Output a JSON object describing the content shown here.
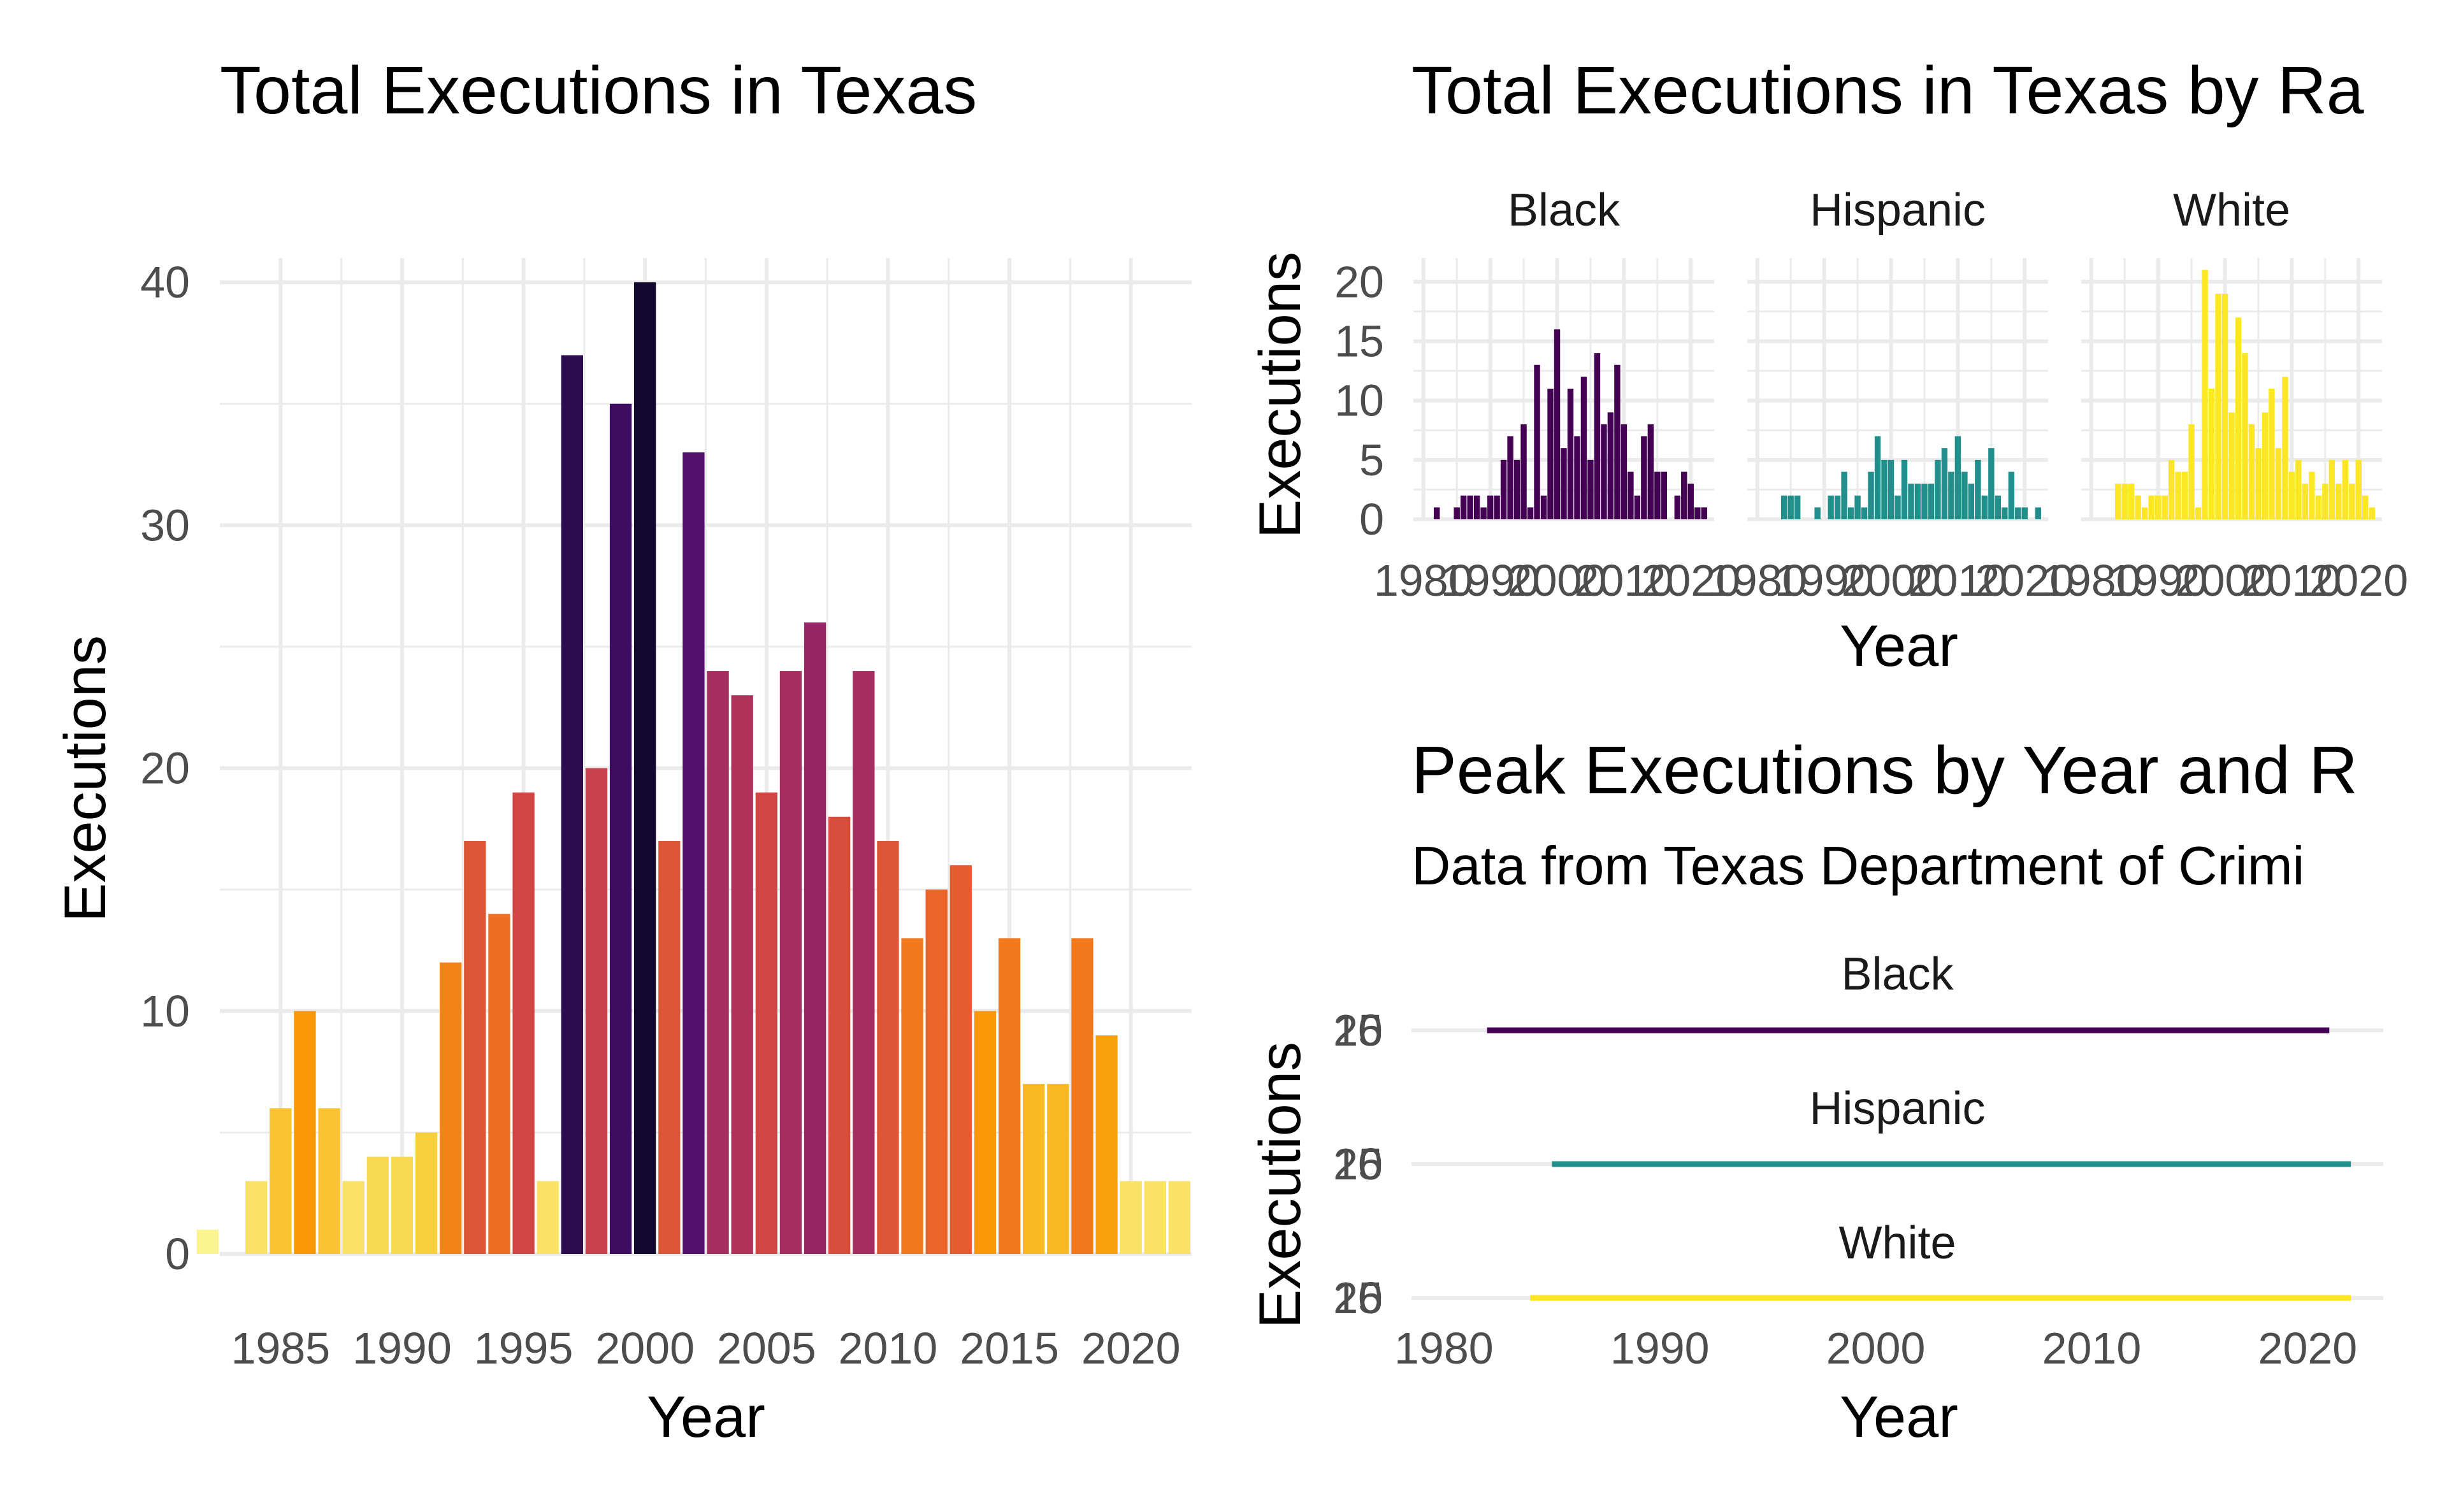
{
  "chart_data": [
    {
      "type": "bar",
      "title": "Total Executions in Texas",
      "xlabel": "Year",
      "ylabel": "Executions",
      "x_ticks": [
        1985,
        1990,
        1995,
        2000,
        2005,
        2010,
        2015,
        2020
      ],
      "y_ticks": [
        0,
        10,
        20,
        30,
        40
      ],
      "xlim": [
        1982.5,
        2022.5
      ],
      "ylim": [
        0,
        41
      ],
      "grid": true,
      "legend": "none",
      "fill_scale": "inferno (reversed): light yellow = few, black = many",
      "x": [
        1982,
        1983,
        1984,
        1985,
        1986,
        1987,
        1988,
        1989,
        1990,
        1991,
        1992,
        1993,
        1994,
        1995,
        1996,
        1997,
        1998,
        1999,
        2000,
        2001,
        2002,
        2003,
        2004,
        2005,
        2006,
        2007,
        2008,
        2009,
        2010,
        2011,
        2012,
        2013,
        2014,
        2015,
        2016,
        2017,
        2018,
        2019,
        2020,
        2021,
        2022
      ],
      "values": [
        1,
        0,
        3,
        6,
        10,
        6,
        3,
        4,
        4,
        5,
        12,
        17,
        14,
        19,
        3,
        37,
        20,
        35,
        40,
        17,
        33,
        24,
        23,
        19,
        24,
        26,
        18,
        24,
        17,
        13,
        15,
        16,
        10,
        13,
        7,
        7,
        13,
        9,
        3,
        3,
        3
      ]
    },
    {
      "type": "bar",
      "title": "Total Executions in Texas by Ra",
      "xlabel": "Year",
      "ylabel": "Executions",
      "facets": [
        "Black",
        "Hispanic",
        "White"
      ],
      "x_ticks": [
        1980,
        1990,
        2000,
        2010,
        2020
      ],
      "x_tick_labels": [
        "1980",
        "1990",
        "2000",
        "2010",
        "2020"
      ],
      "y_ticks": [
        0,
        5,
        10,
        15,
        20
      ],
      "xlim": [
        1978.5,
        2023.5
      ],
      "ylim": [
        0,
        22
      ],
      "grid": true,
      "x": [
        1982,
        1983,
        1984,
        1985,
        1986,
        1987,
        1988,
        1989,
        1990,
        1991,
        1992,
        1993,
        1994,
        1995,
        1996,
        1997,
        1998,
        1999,
        2000,
        2001,
        2002,
        2003,
        2004,
        2005,
        2006,
        2007,
        2008,
        2009,
        2010,
        2011,
        2012,
        2013,
        2014,
        2015,
        2016,
        2017,
        2018,
        2019,
        2020,
        2021,
        2022
      ],
      "series": [
        {
          "name": "Black",
          "color": "#440154",
          "values": [
            1,
            0,
            0,
            1,
            2,
            2,
            2,
            1,
            2,
            2,
            5,
            7,
            5,
            8,
            1,
            13,
            2,
            11,
            16,
            6,
            11,
            7,
            12,
            5,
            14,
            8,
            9,
            13,
            8,
            4,
            2,
            7,
            8,
            4,
            4,
            0,
            2,
            4,
            3,
            1,
            1
          ]
        },
        {
          "name": "Hispanic",
          "color": "#21908c",
          "values": [
            0,
            0,
            2,
            2,
            2,
            0,
            0,
            1,
            0,
            2,
            2,
            4,
            1,
            2,
            1,
            4,
            7,
            5,
            5,
            2,
            5,
            3,
            3,
            3,
            3,
            5,
            6,
            4,
            7,
            4,
            3,
            5,
            2,
            6,
            2,
            1,
            4,
            1,
            1,
            0,
            1
          ]
        },
        {
          "name": "White",
          "color": "#fde725",
          "values": [
            0,
            0,
            3,
            3,
            3,
            2,
            1,
            2,
            2,
            2,
            5,
            4,
            4,
            8,
            1,
            21,
            11,
            19,
            19,
            9,
            17,
            14,
            8,
            6,
            9,
            11,
            6,
            12,
            4,
            5,
            3,
            4,
            2,
            3,
            5,
            3,
            5,
            3,
            5,
            2,
            1
          ]
        }
      ]
    },
    {
      "type": "line",
      "title": "Peak Executions by Year and R",
      "subtitle": "Data from Texas Department of Crimi",
      "xlabel": "Year",
      "ylabel": "Executions",
      "facets": [
        "Black",
        "Hispanic",
        "White"
      ],
      "x_ticks": [
        1980,
        1990,
        2000,
        2010,
        2020
      ],
      "y_tick_overlap_labels": [
        "15",
        "16",
        "20"
      ],
      "xlim": [
        1978.5,
        2023.5
      ],
      "grid": true,
      "series": [
        {
          "name": "Black",
          "color": "#440154",
          "x_range": [
            1982,
            2021
          ]
        },
        {
          "name": "Hispanic",
          "color": "#21908c",
          "x_range": [
            1985,
            2022
          ]
        },
        {
          "name": "White",
          "color": "#fde725",
          "x_range": [
            1984,
            2022
          ]
        }
      ]
    }
  ]
}
